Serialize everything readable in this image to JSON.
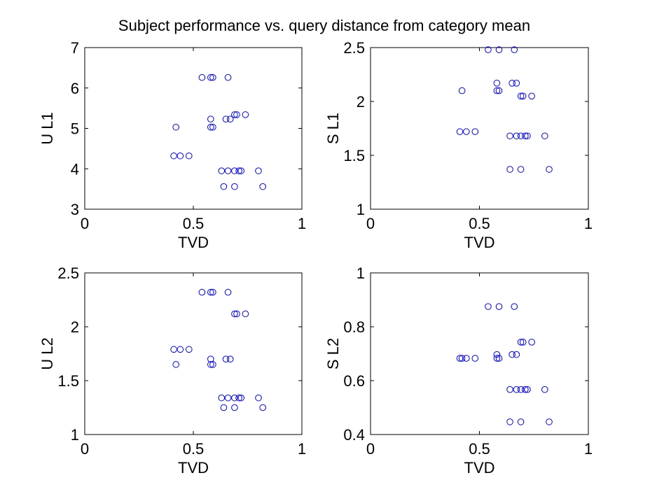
{
  "figure_title": "Subject performance vs. query distance from category mean",
  "colors": {
    "marker": "#0000ff",
    "axes": "#000000",
    "background": "#ffffff"
  },
  "chart_data": [
    {
      "type": "scatter",
      "xlabel": "TVD",
      "ylabel": "U L1",
      "xlim": [
        0,
        1
      ],
      "ylim": [
        3,
        7
      ],
      "xticks": [
        0,
        0.5,
        1
      ],
      "xtick_labels": [
        "0",
        "0.5",
        "1"
      ],
      "yticks": [
        3,
        4,
        5,
        6,
        7
      ],
      "ytick_labels": [
        "3",
        "4",
        "5",
        "6",
        "7"
      ],
      "marker": "circle-open",
      "points": [
        [
          0.54,
          6.26
        ],
        [
          0.58,
          6.26
        ],
        [
          0.59,
          6.26
        ],
        [
          0.66,
          6.26
        ],
        [
          0.42,
          5.03
        ],
        [
          0.58,
          5.23
        ],
        [
          0.58,
          5.03
        ],
        [
          0.59,
          5.03
        ],
        [
          0.65,
          5.23
        ],
        [
          0.67,
          5.23
        ],
        [
          0.69,
          5.34
        ],
        [
          0.7,
          5.34
        ],
        [
          0.74,
          5.34
        ],
        [
          0.41,
          4.32
        ],
        [
          0.44,
          4.32
        ],
        [
          0.48,
          4.32
        ],
        [
          0.63,
          3.95
        ],
        [
          0.66,
          3.95
        ],
        [
          0.69,
          3.95
        ],
        [
          0.71,
          3.95
        ],
        [
          0.72,
          3.95
        ],
        [
          0.8,
          3.95
        ],
        [
          0.64,
          3.56
        ],
        [
          0.69,
          3.56
        ],
        [
          0.82,
          3.56
        ]
      ]
    },
    {
      "type": "scatter",
      "xlabel": "TVD",
      "ylabel": "S L1",
      "xlim": [
        0,
        1
      ],
      "ylim": [
        1,
        2.5
      ],
      "xticks": [
        0,
        0.5,
        1
      ],
      "xtick_labels": [
        "0",
        "0.5",
        "1"
      ],
      "yticks": [
        1,
        1.5,
        2,
        2.5
      ],
      "ytick_labels": [
        "1",
        "1.5",
        "2",
        "2.5"
      ],
      "marker": "circle-open",
      "points": [
        [
          0.54,
          2.48
        ],
        [
          0.59,
          2.48
        ],
        [
          0.66,
          2.48
        ],
        [
          0.42,
          2.1
        ],
        [
          0.58,
          2.17
        ],
        [
          0.58,
          2.1
        ],
        [
          0.59,
          2.1
        ],
        [
          0.65,
          2.17
        ],
        [
          0.67,
          2.17
        ],
        [
          0.69,
          2.05
        ],
        [
          0.7,
          2.05
        ],
        [
          0.74,
          2.05
        ],
        [
          0.41,
          1.72
        ],
        [
          0.44,
          1.72
        ],
        [
          0.48,
          1.72
        ],
        [
          0.64,
          1.68
        ],
        [
          0.67,
          1.68
        ],
        [
          0.69,
          1.68
        ],
        [
          0.71,
          1.68
        ],
        [
          0.72,
          1.68
        ],
        [
          0.8,
          1.68
        ],
        [
          0.64,
          1.37
        ],
        [
          0.69,
          1.37
        ],
        [
          0.82,
          1.37
        ]
      ]
    },
    {
      "type": "scatter",
      "xlabel": "TVD",
      "ylabel": "U L2",
      "xlim": [
        0,
        1
      ],
      "ylim": [
        1,
        2.5
      ],
      "xticks": [
        0,
        0.5,
        1
      ],
      "xtick_labels": [
        "0",
        "0.5",
        "1"
      ],
      "yticks": [
        1,
        1.5,
        2,
        2.5
      ],
      "ytick_labels": [
        "1",
        "1.5",
        "2",
        "2.5"
      ],
      "marker": "circle-open",
      "points": [
        [
          0.54,
          2.32
        ],
        [
          0.58,
          2.32
        ],
        [
          0.59,
          2.32
        ],
        [
          0.66,
          2.32
        ],
        [
          0.42,
          1.65
        ],
        [
          0.58,
          1.7
        ],
        [
          0.58,
          1.65
        ],
        [
          0.59,
          1.65
        ],
        [
          0.65,
          1.7
        ],
        [
          0.67,
          1.7
        ],
        [
          0.69,
          2.12
        ],
        [
          0.7,
          2.12
        ],
        [
          0.74,
          2.12
        ],
        [
          0.41,
          1.79
        ],
        [
          0.44,
          1.79
        ],
        [
          0.48,
          1.79
        ],
        [
          0.63,
          1.34
        ],
        [
          0.66,
          1.34
        ],
        [
          0.69,
          1.34
        ],
        [
          0.71,
          1.34
        ],
        [
          0.72,
          1.34
        ],
        [
          0.8,
          1.34
        ],
        [
          0.64,
          1.25
        ],
        [
          0.69,
          1.25
        ],
        [
          0.82,
          1.25
        ]
      ]
    },
    {
      "type": "scatter",
      "xlabel": "TVD",
      "ylabel": "S L2",
      "xlim": [
        0,
        1
      ],
      "ylim": [
        0.4,
        1
      ],
      "xticks": [
        0,
        0.5,
        1
      ],
      "xtick_labels": [
        "0",
        "0.5",
        "1"
      ],
      "yticks": [
        0.4,
        0.6,
        0.8,
        1
      ],
      "ytick_labels": [
        "0.4",
        "0.6",
        "0.8",
        "1"
      ],
      "marker": "circle-open",
      "points": [
        [
          0.54,
          0.875
        ],
        [
          0.59,
          0.875
        ],
        [
          0.66,
          0.875
        ],
        [
          0.42,
          0.683
        ],
        [
          0.58,
          0.697
        ],
        [
          0.58,
          0.683
        ],
        [
          0.59,
          0.683
        ],
        [
          0.65,
          0.697
        ],
        [
          0.67,
          0.697
        ],
        [
          0.69,
          0.743
        ],
        [
          0.7,
          0.743
        ],
        [
          0.74,
          0.743
        ],
        [
          0.41,
          0.683
        ],
        [
          0.44,
          0.683
        ],
        [
          0.48,
          0.683
        ],
        [
          0.64,
          0.567
        ],
        [
          0.67,
          0.567
        ],
        [
          0.69,
          0.567
        ],
        [
          0.71,
          0.567
        ],
        [
          0.72,
          0.567
        ],
        [
          0.8,
          0.567
        ],
        [
          0.64,
          0.447
        ],
        [
          0.69,
          0.447
        ],
        [
          0.82,
          0.447
        ]
      ]
    }
  ]
}
